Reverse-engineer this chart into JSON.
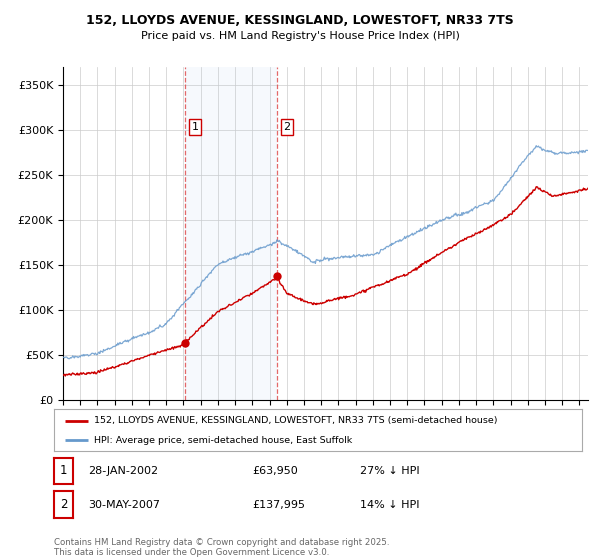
{
  "title_line1": "152, LLOYDS AVENUE, KESSINGLAND, LOWESTOFT, NR33 7TS",
  "title_line2": "Price paid vs. HM Land Registry's House Price Index (HPI)",
  "legend_entry1": "152, LLOYDS AVENUE, KESSINGLAND, LOWESTOFT, NR33 7TS (semi-detached house)",
  "legend_entry2": "HPI: Average price, semi-detached house, East Suffolk",
  "annotation1_date": "28-JAN-2002",
  "annotation1_price": "£63,950",
  "annotation1_hpi": "27% ↓ HPI",
  "annotation2_date": "30-MAY-2007",
  "annotation2_price": "£137,995",
  "annotation2_hpi": "14% ↓ HPI",
  "footer": "Contains HM Land Registry data © Crown copyright and database right 2025.\nThis data is licensed under the Open Government Licence v3.0.",
  "price_color": "#cc0000",
  "hpi_color": "#6699cc",
  "background_color": "#ffffff",
  "ylim": [
    0,
    370000
  ],
  "yticks": [
    0,
    50000,
    100000,
    150000,
    200000,
    250000,
    300000,
    350000
  ],
  "purchase1_x": 2002.07,
  "purchase1_y": 63950,
  "purchase2_x": 2007.41,
  "purchase2_y": 137995,
  "xmin": 1995.0,
  "xmax": 2025.5
}
